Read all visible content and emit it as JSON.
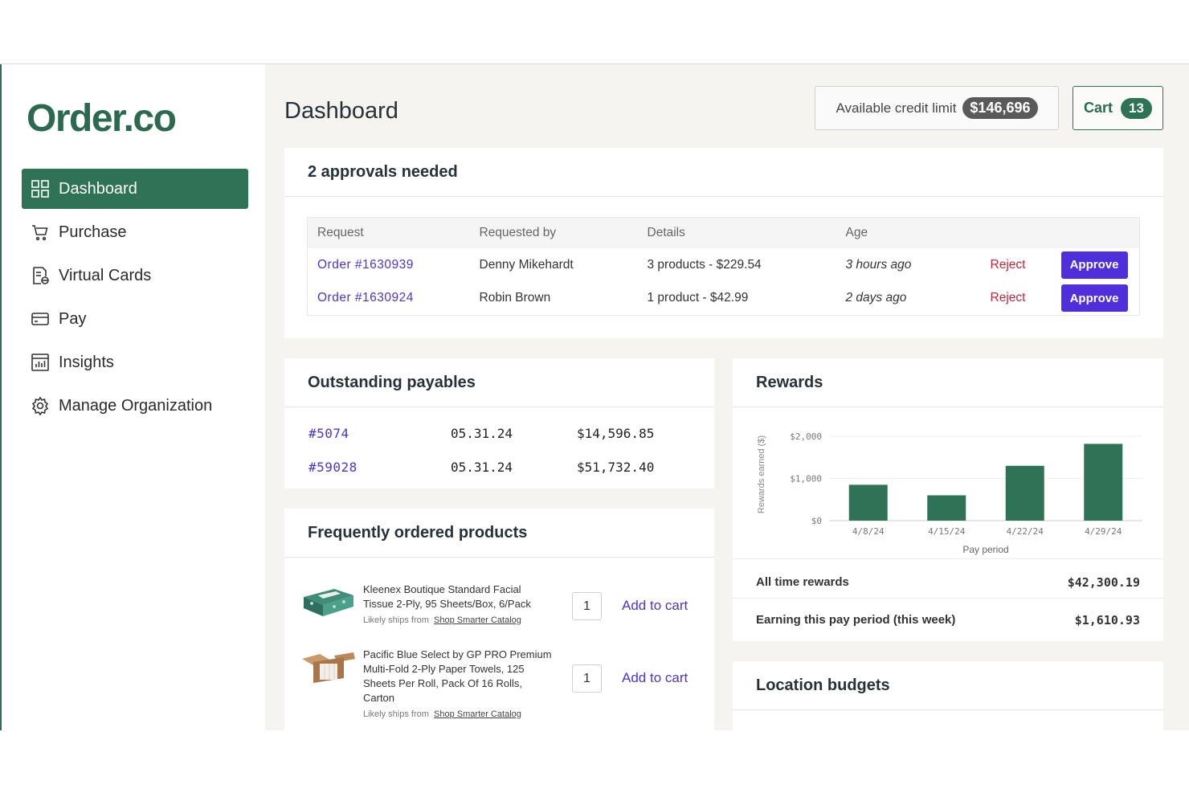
{
  "app": {
    "logo": "Order.co"
  },
  "sidebar": {
    "items": [
      {
        "label": "Dashboard",
        "icon": "grid-icon",
        "active": true
      },
      {
        "label": "Purchase",
        "icon": "cart-icon"
      },
      {
        "label": "Virtual Cards",
        "icon": "virtual-card-icon"
      },
      {
        "label": "Pay",
        "icon": "credit-card-icon"
      },
      {
        "label": "Insights",
        "icon": "chart-icon"
      },
      {
        "label": "Manage Organization",
        "icon": "gear-icon"
      }
    ]
  },
  "header": {
    "title": "Dashboard",
    "credit_label": "Available credit limit",
    "credit_value": "$146,696",
    "cart_label": "Cart",
    "cart_count": "13"
  },
  "approvals": {
    "title": "2 approvals needed",
    "columns": [
      "Request",
      "Requested by",
      "Details",
      "Age"
    ],
    "rows": [
      {
        "request": "Order #1630939",
        "by": "Denny Mikehardt",
        "details": "3 products - $229.54",
        "age": "3 hours ago",
        "reject": "Reject",
        "approve": "Approve"
      },
      {
        "request": "Order #1630924",
        "by": "Robin Brown",
        "details": "1 product - $42.99",
        "age": "2 days ago",
        "reject": "Reject",
        "approve": "Approve"
      }
    ]
  },
  "payables": {
    "title": "Outstanding payables",
    "rows": [
      {
        "id": "#5074",
        "date": "05.31.24",
        "amount": "$14,596.85"
      },
      {
        "id": "#59028",
        "date": "05.31.24",
        "amount": "$51,732.40"
      }
    ]
  },
  "products": {
    "title": "Frequently ordered products",
    "items": [
      {
        "name": "Kleenex Boutique Standard Facial Tissue 2-Ply, 95 Sheets/Box, 6/Pack",
        "ships_label": "Likely ships from",
        "ships_from": "Shop Smarter Catalog",
        "qty": "1",
        "add": "Add to cart"
      },
      {
        "name": "Pacific Blue Select by GP PRO Premium Multi-Fold 2-Ply Paper Towels, 125 Sheets Per Roll, Pack Of 16 Rolls, Carton",
        "ships_label": "Likely ships from",
        "ships_from": "Shop Smarter Catalog",
        "qty": "1",
        "add": "Add to cart"
      }
    ]
  },
  "rewards": {
    "title": "Rewards",
    "all_time_label": "All time rewards",
    "all_time_value": "$42,300.19",
    "period_label": "Earning this pay period (this week)",
    "period_value": "$1,610.93"
  },
  "chart_data": {
    "type": "bar",
    "categories": [
      "4/8/24",
      "4/15/24",
      "4/22/24",
      "4/29/24"
    ],
    "values": [
      850,
      600,
      1300,
      1820
    ],
    "ylabel": "Rewards earned ($)",
    "xlabel": "Pay period",
    "ylim": [
      0,
      2000
    ],
    "yticks": [
      0,
      1000,
      2000
    ],
    "ytick_labels": [
      "$0",
      "$1,000",
      "$2,000"
    ],
    "color": "#2e7355",
    "grid": true
  },
  "budgets": {
    "title": "Location budgets"
  }
}
